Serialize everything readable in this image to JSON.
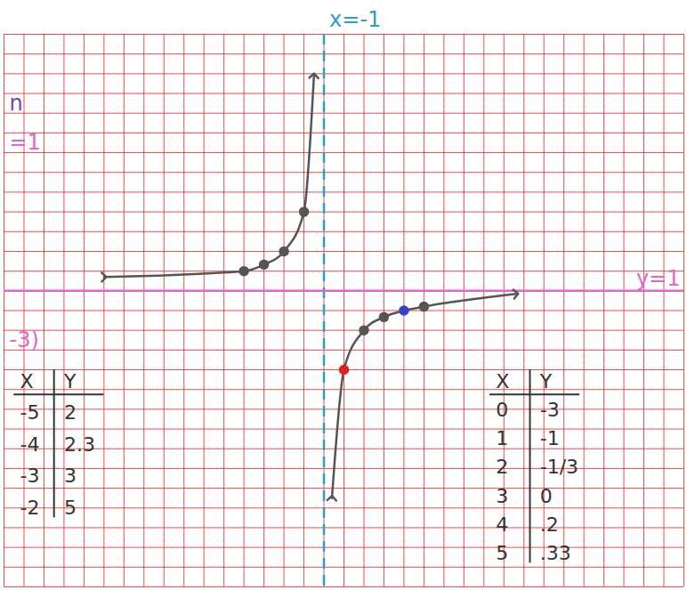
{
  "chart_data": {
    "type": "line",
    "xlim": [
      -17,
      17
    ],
    "ylim": [
      -14,
      14
    ],
    "xticks": [
      -17,
      -16,
      -15,
      -14,
      -13,
      -12,
      -11,
      -10,
      -9,
      -8,
      -7,
      -6,
      -5,
      -4,
      -3,
      -2,
      -1,
      0,
      1,
      2,
      3,
      4,
      5,
      6,
      7,
      8,
      9,
      10,
      11,
      12,
      13,
      14,
      15,
      16,
      17
    ],
    "yticks": [
      -14,
      -13,
      -12,
      -11,
      -10,
      -9,
      -8,
      -7,
      -6,
      -5,
      -4,
      -3,
      -2,
      -1,
      0,
      1,
      2,
      3,
      4,
      5,
      6,
      7,
      8,
      9,
      10,
      11,
      12,
      13,
      14
    ],
    "grid": true,
    "tick_labels": false,
    "series": [
      {
        "type": "line",
        "color": "#555555",
        "marker": "arrow",
        "x": [
          -12,
          -5,
          -4,
          -3,
          -2,
          -1.5
        ],
        "values": [
          1.7,
          2,
          2.33,
          3,
          5,
          11.9
        ]
      },
      {
        "type": "line",
        "color": "#555555",
        "marker": "arrow",
        "x": [
          -0.6,
          0,
          1,
          2,
          3,
          4,
          8.6
        ],
        "values": [
          -9.5,
          -3,
          -1,
          -0.33,
          0,
          0.2,
          0.85
        ]
      },
      {
        "type": "scatter",
        "color": "#555555",
        "marker": "circle",
        "x": [
          -5,
          -4,
          -3,
          -2
        ],
        "values": [
          2,
          2.33,
          3,
          5
        ],
        "colors": [
          "#555555",
          "#555555",
          "#555555",
          "#555555"
        ]
      },
      {
        "type": "scatter",
        "color": "#555555",
        "marker": "circle",
        "x": [
          0,
          1,
          2,
          3,
          4
        ],
        "values": [
          -3,
          -1,
          -0.33,
          0,
          0.2
        ],
        "colors": [
          "#e02020",
          "#555555",
          "#555555",
          "#3344cc",
          "#555555"
        ]
      }
    ],
    "asymptotes": [
      {
        "axis": "x",
        "value": -1,
        "label": "x=-1",
        "color": "#2a9fc9",
        "line_style": "dashed"
      },
      {
        "axis": "y",
        "value": 1,
        "label": "y=1",
        "color": "#e066c8",
        "line_style": "solid"
      }
    ],
    "tables": [
      {
        "header": [
          "X",
          "Y"
        ],
        "rows": [
          [
            "-5",
            "2"
          ],
          [
            "-4",
            "2.3"
          ],
          [
            "-3",
            "3"
          ],
          [
            "-2",
            "5"
          ]
        ]
      },
      {
        "header": [
          "X",
          "Y"
        ],
        "rows": [
          [
            "0",
            "-3"
          ],
          [
            "1",
            "-1"
          ],
          [
            "2",
            "-1/3"
          ],
          [
            "3",
            "0"
          ],
          [
            "4",
            ".2"
          ],
          [
            "5",
            ".33"
          ]
        ]
      }
    ],
    "notes": [
      "n",
      "=1",
      "-3)"
    ]
  }
}
